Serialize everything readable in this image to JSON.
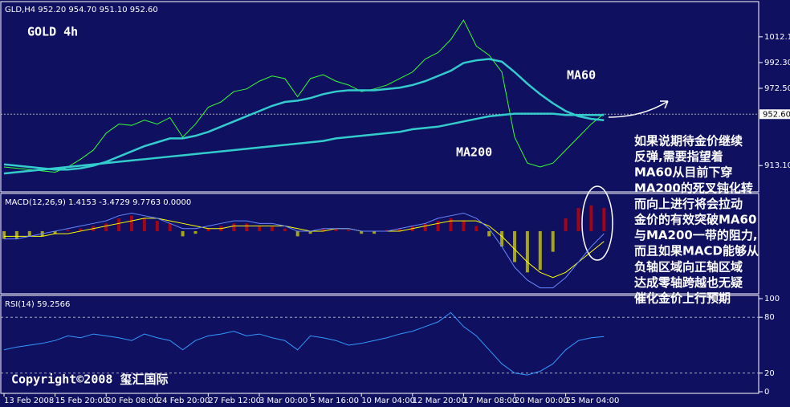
{
  "chart_data": [
    {
      "type": "line",
      "title": "GOLD 4h",
      "header": "GLD,H4  952.20 954.70 951.10 952.60",
      "categories": [
        "13 Feb 2008",
        null,
        null,
        null,
        "15 Feb 20:00",
        null,
        null,
        null,
        "20 Feb 08:00",
        null,
        null,
        null,
        "24 Feb 20:00",
        null,
        null,
        null,
        "27 Feb 12:00",
        null,
        null,
        null,
        "3 Mar 00:00",
        null,
        null,
        null,
        "5 Mar 16:00",
        null,
        null,
        null,
        "10 Mar 04:00",
        null,
        null,
        null,
        "12 Mar 20:00",
        null,
        null,
        null,
        "17 Mar 08:00",
        null,
        null,
        null,
        "20 Mar 00:00",
        null,
        null,
        null,
        "25 Mar 04:00",
        null,
        null,
        null
      ],
      "series": [
        {
          "color": "#33ff33",
          "values": [
            912,
            911,
            910,
            909,
            908,
            912,
            918,
            925,
            938,
            945,
            944,
            948,
            945,
            950,
            935,
            945,
            958,
            962,
            970,
            972,
            978,
            982,
            980,
            966,
            980,
            983,
            978,
            975,
            970,
            972,
            975,
            980,
            985,
            995,
            1000,
            1010,
            1025,
            1005,
            998,
            985,
            935,
            915,
            912,
            915,
            925,
            935,
            945,
            953
          ]
        },
        {
          "name": "MA60",
          "color": "#33cccc",
          "values": [
            914,
            913,
            912,
            911,
            910,
            910,
            911,
            913,
            916,
            920,
            924,
            928,
            931,
            934,
            934,
            936,
            939,
            943,
            947,
            951,
            955,
            959,
            962,
            963,
            965,
            968,
            970,
            971,
            971,
            971,
            972,
            973,
            975,
            978,
            982,
            986,
            992,
            994,
            995,
            993,
            985,
            976,
            968,
            961,
            955,
            951,
            949,
            948
          ]
        },
        {
          "name": "MA200",
          "color": "#33cccc",
          "values": [
            907,
            908,
            909,
            910,
            911,
            912,
            913,
            914,
            915,
            916,
            917,
            918,
            919,
            920,
            921,
            922,
            923,
            924,
            925,
            926,
            927,
            928,
            929,
            930,
            931,
            932,
            934,
            935,
            936,
            937,
            938,
            939,
            941,
            942,
            943,
            945,
            947,
            949,
            951,
            952,
            953,
            953,
            953,
            953,
            952,
            952,
            952,
            952
          ]
        }
      ],
      "ylim": [
        893.5,
        1036.7
      ],
      "yticks": [
        {
          "value": 913.1,
          "label": "913.10"
        },
        {
          "value": 972.5,
          "label": "972.50"
        },
        {
          "value": 992.3,
          "label": "992.30"
        },
        {
          "value": 1012.1,
          "label": "1012.10"
        }
      ],
      "last": {
        "value": 952.6,
        "label": "952.60"
      }
    },
    {
      "type": "bar",
      "header": "MACD(12,26,9) 1.4153 -3.4729 9.7763 0.0000",
      "values": [
        -3,
        -3,
        -2,
        -2,
        -1,
        0.5,
        1,
        2,
        3,
        5,
        6,
        5,
        4,
        3,
        -2,
        -1,
        1,
        2,
        3,
        3,
        2,
        2,
        1,
        -2,
        -1,
        1,
        1,
        0.5,
        -1,
        -1,
        0.5,
        1,
        2,
        3,
        4,
        5,
        4,
        2,
        -2,
        -6,
        -12,
        -16,
        -15,
        -8,
        5,
        9,
        10,
        9
      ],
      "positive_color": "#cc0000",
      "negative_color": "#cccc00",
      "series": [
        {
          "color": "#ffff00",
          "values": [
            -2,
            -2,
            -2,
            -2,
            -1,
            -1,
            0,
            1,
            2,
            3,
            4,
            5,
            5,
            4,
            3,
            2,
            1,
            1,
            2,
            2,
            2,
            2,
            2,
            1,
            0,
            0,
            1,
            1,
            0,
            0,
            0,
            0,
            1,
            2,
            3,
            4,
            4,
            4,
            2,
            -2,
            -7,
            -12,
            -16,
            -18,
            -16,
            -12,
            -8,
            -4
          ]
        },
        {
          "color": "#6688ff",
          "values": [
            -3,
            -3,
            -2,
            -1,
            0,
            1,
            2,
            3,
            4,
            6,
            7,
            6,
            5,
            3,
            1,
            1,
            2,
            3,
            4,
            4,
            3,
            3,
            2,
            0,
            0,
            1,
            1,
            1,
            0,
            0,
            0,
            1,
            2,
            3,
            5,
            6,
            7,
            5,
            1,
            -6,
            -14,
            -19,
            -22,
            -22,
            -18,
            -12,
            -6,
            -1
          ]
        }
      ],
      "ylim": [
        -24,
        14
      ]
    },
    {
      "type": "line",
      "header": "RSI(14) 59.2566",
      "series": [
        {
          "color": "#3399ff",
          "values": [
            45,
            48,
            50,
            52,
            55,
            60,
            58,
            62,
            60,
            58,
            55,
            62,
            58,
            55,
            45,
            55,
            60,
            62,
            65,
            60,
            62,
            58,
            55,
            45,
            60,
            58,
            55,
            50,
            52,
            55,
            58,
            62,
            65,
            70,
            75,
            85,
            70,
            60,
            45,
            30,
            20,
            18,
            22,
            30,
            45,
            55,
            58,
            59.2566
          ]
        }
      ],
      "ylim": [
        0,
        100
      ],
      "yticks": [
        0,
        20,
        80,
        100
      ]
    }
  ],
  "annotations": [
    "MA60",
    "MA200"
  ],
  "note": [
    "如果说期待金价继续",
    "反弹,需要指望着",
    "MA60从目前下穿",
    "MA200的死叉钝化转",
    "而向上进行将会拉动",
    "金价的有效突破MA60",
    "与MA200一带的阻力,",
    "而且如果MACD能够从",
    "负轴区域向正轴区域",
    "达成零轴跨越也无疑",
    "催化金价上行预期"
  ],
  "copyright": "Copyright©2008 玺汇国际"
}
